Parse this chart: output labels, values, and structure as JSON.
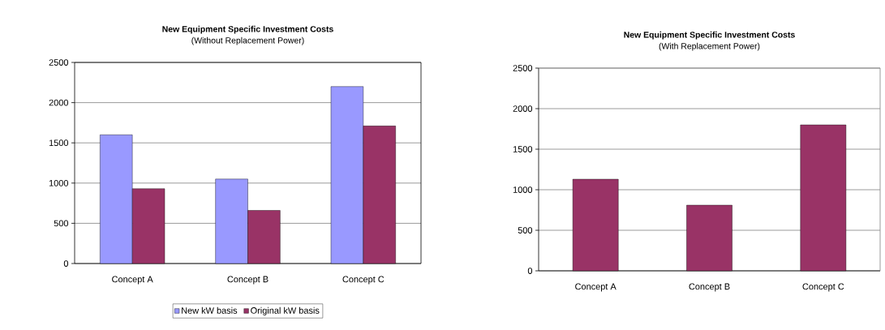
{
  "chart_data": [
    {
      "type": "bar",
      "title": "New Equipment Specific Investment Costs",
      "subtitle": "(Without Replacement Power)",
      "categories": [
        "Concept A",
        "Concept B",
        "Concept C"
      ],
      "series": [
        {
          "name": "New kW basis",
          "color": "#9999ff",
          "values": [
            1600,
            1050,
            2200
          ]
        },
        {
          "name": "Original kW basis",
          "color": "#993366",
          "values": [
            930,
            660,
            1710
          ]
        }
      ],
      "ylim": [
        0,
        2500
      ],
      "yticks": [
        0,
        500,
        1000,
        1500,
        2000,
        2500
      ],
      "grid": "y",
      "legend": "bottom"
    },
    {
      "type": "bar",
      "title": "New Equipment Specific Investment Costs",
      "subtitle": "(With Replacement Power)",
      "categories": [
        "Concept A",
        "Concept B",
        "Concept C"
      ],
      "series": [
        {
          "color": "#993366",
          "values": [
            1130,
            810,
            1800
          ]
        }
      ],
      "ylim": [
        0,
        2500
      ],
      "yticks": [
        0,
        500,
        1000,
        1500,
        2000,
        2500
      ],
      "grid": "y"
    }
  ]
}
